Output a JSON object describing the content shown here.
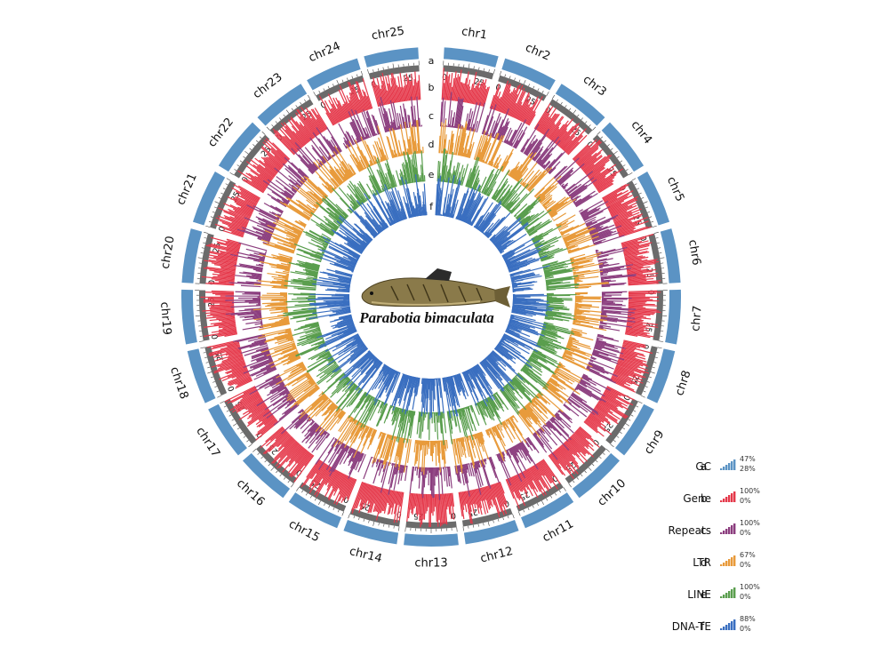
{
  "figure": {
    "species": "Parabotia bimaculata"
  },
  "chromosomes": [
    {
      "label": "chr1"
    },
    {
      "label": "chr2"
    },
    {
      "label": "chr3"
    },
    {
      "label": "chr4"
    },
    {
      "label": "chr5"
    },
    {
      "label": "chr6"
    },
    {
      "label": "chr7"
    },
    {
      "label": "chr8"
    },
    {
      "label": "chr9"
    },
    {
      "label": "chr10"
    },
    {
      "label": "chr11"
    },
    {
      "label": "chr12"
    },
    {
      "label": "chr13"
    },
    {
      "label": "chr14"
    },
    {
      "label": "chr15"
    },
    {
      "label": "chr16"
    },
    {
      "label": "chr17"
    },
    {
      "label": "chr18"
    },
    {
      "label": "chr19"
    },
    {
      "label": "chr20"
    },
    {
      "label": "chr21"
    },
    {
      "label": "chr22"
    },
    {
      "label": "chr23"
    },
    {
      "label": "chr24"
    },
    {
      "label": "chr25"
    }
  ],
  "tick_labels": [
    "0",
    "25"
  ],
  "tracks": [
    {
      "letter": "a",
      "name": "GC",
      "color": "#5b93c4",
      "max": "47%",
      "min": "28%"
    },
    {
      "letter": "b",
      "name": "Gene",
      "color": "#e5384a",
      "max": "100%",
      "min": "0%"
    },
    {
      "letter": "c",
      "name": "Repeats",
      "color": "#8b3d7e",
      "max": "100%",
      "min": "0%"
    },
    {
      "letter": "d",
      "name": "LTR",
      "color": "#e89a3a",
      "max": "67%",
      "min": "0%"
    },
    {
      "letter": "e",
      "name": "LINE",
      "color": "#5a9e4e",
      "max": "100%",
      "min": "0%"
    },
    {
      "letter": "f",
      "name": "DNA-TE",
      "color": "#3a6fc0",
      "max": "88%",
      "min": "0%"
    }
  ],
  "colors": {
    "ideogram": "#5b93c4",
    "axis": "#6b6b6b"
  }
}
